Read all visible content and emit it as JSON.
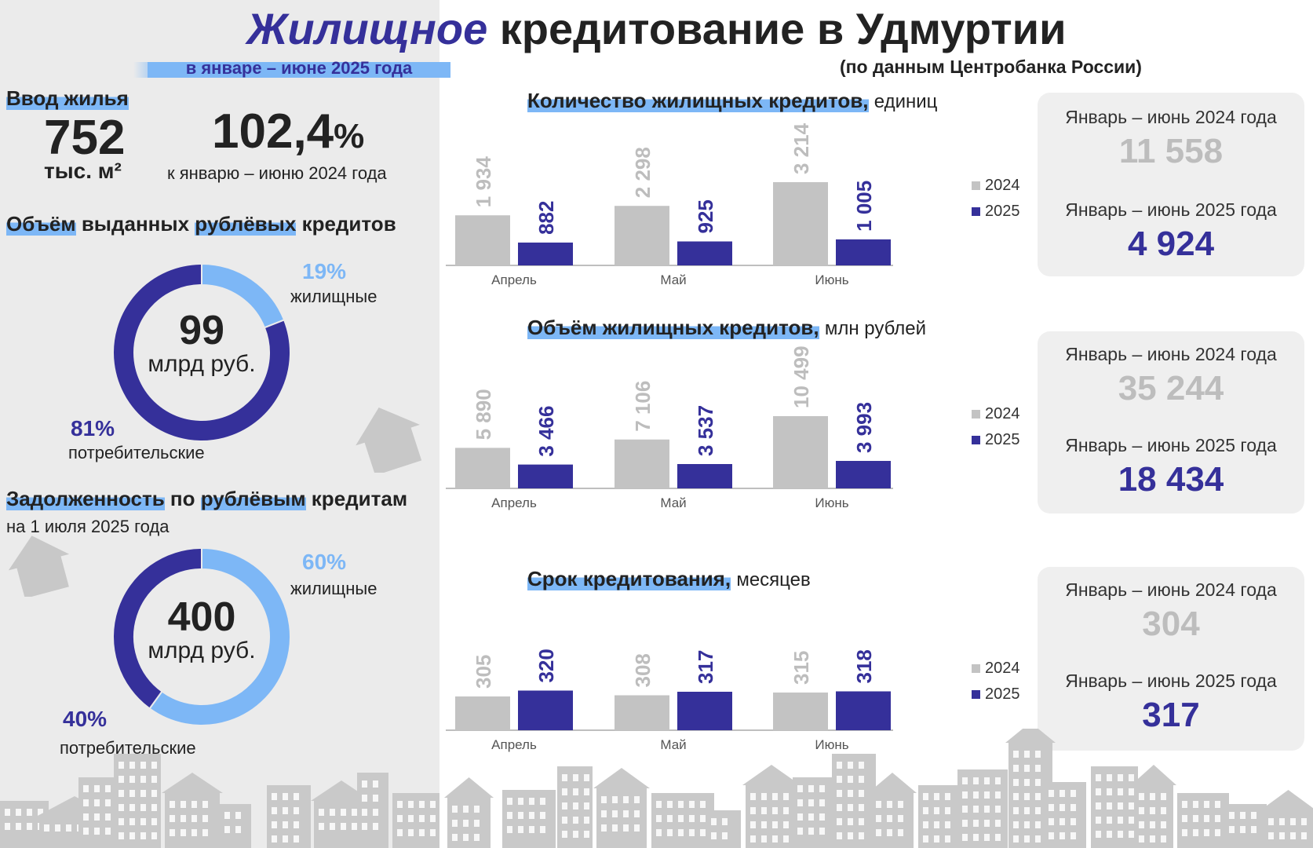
{
  "header": {
    "title_accent": "Жилищное",
    "title_rest": "кредитование в Удмуртии",
    "subtitle": "в январе – июне 2025 года",
    "source": "(по данным Центробанка России)"
  },
  "housing": {
    "title": "Ввод жилья",
    "value": "752",
    "unit": "тыс. м²",
    "percent_int": "102,4",
    "percent_sign": "%",
    "percent_note": "к январю – июню 2024 года"
  },
  "volume_rub": {
    "title_hl1": "Объём",
    "title_mid": "выданных",
    "title_hl2": "рублёвых",
    "title_end": "кредитов",
    "center_value": "99",
    "center_unit": "млрд руб.",
    "segments": [
      {
        "name": "жилищные",
        "percent_label": "19%",
        "share": 19,
        "color": "#7db7f6"
      },
      {
        "name": "потребительские",
        "percent_label": "81%",
        "share": 81,
        "color": "#35309a"
      }
    ]
  },
  "debt": {
    "title_hl1": "Задолженность",
    "title_mid": "по",
    "title_hl2": "рублёвым",
    "title_end": "кредитам",
    "subtitle": "на 1 июля 2025 года",
    "center_value": "400",
    "center_unit": "млрд руб.",
    "segments": [
      {
        "name": "жилищные",
        "percent_label": "60%",
        "share": 60,
        "color": "#7db7f6"
      },
      {
        "name": "потребительские",
        "percent_label": "40%",
        "share": 40,
        "color": "#35309a"
      }
    ]
  },
  "colors": {
    "accent": "#35309a",
    "light_blue": "#7db7f6",
    "grey_bar": "#c3c3c3",
    "grey_text": "#bdbdbd"
  },
  "chart_data": [
    {
      "type": "bar",
      "title": "Количество жилищных кредитов,",
      "unit": "единиц",
      "categories": [
        "Апрель",
        "Май",
        "Июнь"
      ],
      "series": [
        {
          "name": "2024",
          "values": [
            1934,
            2298,
            3214
          ],
          "labels": [
            "1 934",
            "2 298",
            "3 214"
          ]
        },
        {
          "name": "2025",
          "values": [
            882,
            925,
            1005
          ],
          "labels": [
            "882",
            "925",
            "1 005"
          ]
        }
      ],
      "summary": {
        "label_2024": "Январь – июнь 2024 года",
        "value_2024": "11 558",
        "label_2025": "Январь – июнь 2025 года",
        "value_2025": "4 924"
      }
    },
    {
      "type": "bar",
      "title": "Объём жилищных кредитов,",
      "unit": "млн рублей",
      "categories": [
        "Апрель",
        "Май",
        "Июнь"
      ],
      "series": [
        {
          "name": "2024",
          "values": [
            5890,
            7106,
            10499
          ],
          "labels": [
            "5 890",
            "7 106",
            "10 499"
          ]
        },
        {
          "name": "2025",
          "values": [
            3466,
            3537,
            3993
          ],
          "labels": [
            "3 466",
            "3 537",
            "3 993"
          ]
        }
      ],
      "summary": {
        "label_2024": "Январь – июнь 2024 года",
        "value_2024": "35 244",
        "label_2025": "Январь – июнь 2025 года",
        "value_2025": "18 434"
      }
    },
    {
      "type": "bar",
      "title": "Срок кредитования,",
      "unit": "месяцев",
      "categories": [
        "Апрель",
        "Май",
        "Июнь"
      ],
      "series": [
        {
          "name": "2024",
          "values": [
            305,
            308,
            315
          ],
          "labels": [
            "305",
            "308",
            "315"
          ]
        },
        {
          "name": "2025",
          "values": [
            320,
            317,
            318
          ],
          "labels": [
            "320",
            "317",
            "318"
          ]
        }
      ],
      "summary": {
        "label_2024": "Январь – июнь 2024 года",
        "value_2024": "304",
        "label_2025": "Январь – июнь 2025 года",
        "value_2025": "317"
      }
    }
  ]
}
